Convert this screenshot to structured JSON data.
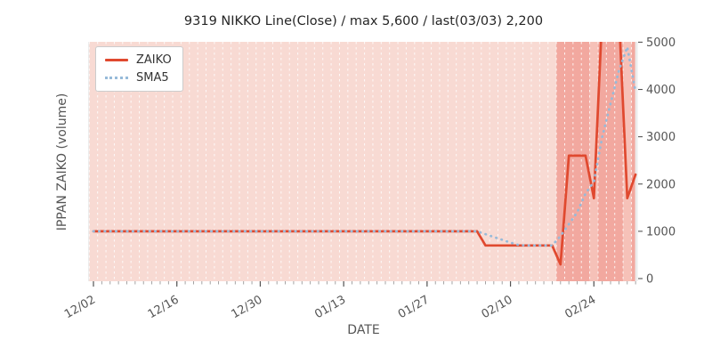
{
  "title": "9319 NIKKO Line(Close) / max 5,600 / last(03/03) 2,200",
  "legend": {
    "position": "upper-left",
    "items": [
      {
        "label": "ZAIKO",
        "color": "#e0492f",
        "style": "solid"
      },
      {
        "label": "SMA5",
        "color": "#97bad9",
        "style": "dotted"
      }
    ]
  },
  "chart_data": {
    "type": "line",
    "title": "9319 NIKKO Line(Close) / max 5,600 / last(03/03) 2,200",
    "xlabel": "DATE",
    "ylabel": "IPPAN ZAIKO (volume)",
    "y_axis_side": "right",
    "ylim": [
      0,
      5000
    ],
    "y_ticks": [
      0,
      1000,
      2000,
      3000,
      4000,
      5000
    ],
    "x_major_ticks": [
      "12/02",
      "12/16",
      "12/30",
      "01/13",
      "01/27",
      "02/10",
      "02/24"
    ],
    "x_major_tick_days": [
      0,
      10,
      20,
      30,
      40,
      50,
      60
    ],
    "grid": "vertical daily white dashed lines, no horizontal grid",
    "legend_position": "upper-left",
    "max_value": 5600,
    "last_value": 2200,
    "last_date": "03/03",
    "dates": [
      "12/02",
      "12/03",
      "12/04",
      "12/05",
      "12/06",
      "12/09",
      "12/10",
      "12/11",
      "12/12",
      "12/13",
      "12/16",
      "12/17",
      "12/18",
      "12/19",
      "12/20",
      "12/23",
      "12/24",
      "12/25",
      "12/26",
      "12/27",
      "12/30",
      "12/31",
      "01/01",
      "01/02",
      "01/03",
      "01/06",
      "01/07",
      "01/08",
      "01/09",
      "01/10",
      "01/13",
      "01/14",
      "01/15",
      "01/16",
      "01/17",
      "01/20",
      "01/21",
      "01/22",
      "01/23",
      "01/24",
      "01/27",
      "01/28",
      "01/29",
      "01/30",
      "01/31",
      "02/03",
      "02/04",
      "02/05",
      "02/06",
      "02/07",
      "02/10",
      "02/11",
      "02/12",
      "02/13",
      "02/14",
      "02/17",
      "02/18",
      "02/19",
      "02/20",
      "02/21",
      "02/24",
      "02/25",
      "02/26",
      "02/27",
      "02/28",
      "03/03"
    ],
    "series": [
      {
        "name": "ZAIKO",
        "color": "#e0492f",
        "style": "solid",
        "values": [
          1000,
          1000,
          1000,
          1000,
          1000,
          1000,
          1000,
          1000,
          1000,
          1000,
          1000,
          1000,
          1000,
          1000,
          1000,
          1000,
          1000,
          1000,
          1000,
          1000,
          1000,
          1000,
          1000,
          1000,
          1000,
          1000,
          1000,
          1000,
          1000,
          1000,
          1000,
          1000,
          1000,
          1000,
          1000,
          1000,
          1000,
          1000,
          1000,
          1000,
          1000,
          1000,
          1000,
          1000,
          1000,
          1000,
          1000,
          700,
          700,
          700,
          700,
          700,
          700,
          700,
          700,
          700,
          300,
          2600,
          2600,
          2600,
          1700,
          5600,
          5600,
          5600,
          1700,
          2200
        ]
      },
      {
        "name": "SMA5",
        "color": "#97bad9",
        "style": "dotted",
        "values": [
          1000,
          1000,
          1000,
          1000,
          1000,
          1000,
          1000,
          1000,
          1000,
          1000,
          1000,
          1000,
          1000,
          1000,
          1000,
          1000,
          1000,
          1000,
          1000,
          1000,
          1000,
          1000,
          1000,
          1000,
          1000,
          1000,
          1000,
          1000,
          1000,
          1000,
          1000,
          1000,
          1000,
          1000,
          1000,
          1000,
          1000,
          1000,
          1000,
          1000,
          1000,
          1000,
          1000,
          1000,
          1000,
          1000,
          1000,
          940,
          880,
          820,
          760,
          710,
          700,
          700,
          700,
          700,
          900,
          1150,
          1400,
          1800,
          2050,
          3000,
          3700,
          4400,
          4900,
          3950
        ]
      }
    ],
    "background_bands": [
      {
        "start_day": 0,
        "end_day": 55,
        "color": "#f8dad3"
      },
      {
        "start_day": 56,
        "end_day": 59,
        "color": "#f2a89f"
      },
      {
        "start_day": 60,
        "end_day": 60,
        "color": "#f6c1b8"
      },
      {
        "start_day": 61,
        "end_day": 63,
        "color": "#f2a89f"
      },
      {
        "start_day": 64,
        "end_day": 64,
        "color": "#f6c1b8"
      },
      {
        "start_day": 65,
        "end_day": 65,
        "color": "#f2a89f"
      }
    ],
    "plot_background_color": "#ebebeb",
    "gridline_color": "#ffffff",
    "tick_label_color": "#555555"
  }
}
